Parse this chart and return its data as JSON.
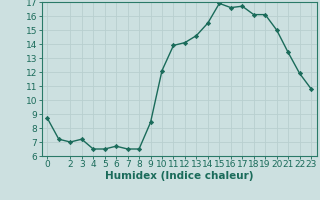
{
  "x": [
    0,
    1,
    2,
    3,
    4,
    5,
    6,
    7,
    8,
    9,
    10,
    11,
    12,
    13,
    14,
    15,
    16,
    17,
    18,
    19,
    20,
    21,
    22,
    23
  ],
  "y": [
    8.7,
    7.2,
    7.0,
    7.2,
    6.5,
    6.5,
    6.7,
    6.5,
    6.5,
    8.4,
    12.1,
    13.9,
    14.1,
    14.6,
    15.5,
    16.9,
    16.6,
    16.7,
    16.1,
    16.1,
    15.0,
    13.4,
    11.9,
    10.8
  ],
  "line_color": "#1a6b5a",
  "marker": "D",
  "markersize": 2.2,
  "linewidth": 1.0,
  "xlabel": "Humidex (Indice chaleur)",
  "xlim_min": -0.5,
  "xlim_max": 23.5,
  "ylim_min": 6,
  "ylim_max": 17,
  "yticks": [
    6,
    7,
    8,
    9,
    10,
    11,
    12,
    13,
    14,
    15,
    16,
    17
  ],
  "xticks": [
    0,
    2,
    3,
    4,
    5,
    6,
    7,
    8,
    9,
    10,
    11,
    12,
    13,
    14,
    15,
    16,
    17,
    18,
    19,
    20,
    21,
    22,
    23
  ],
  "grid_color": "#b8cfcf",
  "background_color": "#cce0e0",
  "line_border_color": "#2a7a68",
  "tick_color": "#1a6b5a",
  "xlabel_fontsize": 7.5,
  "tick_fontsize": 6.5,
  "tick_label_color": "#1a6b5a"
}
